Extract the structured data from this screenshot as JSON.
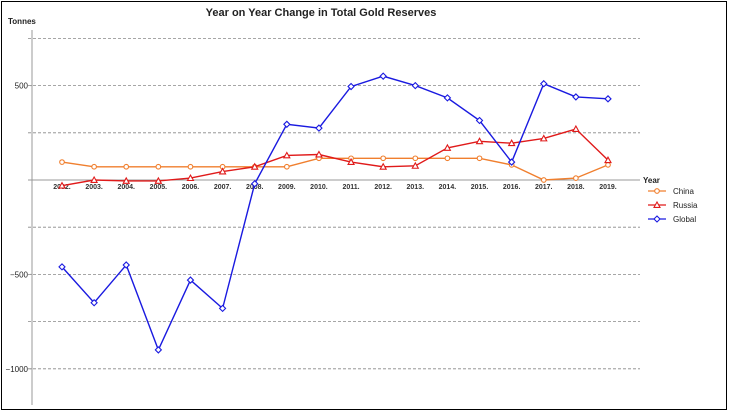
{
  "chart_data": {
    "type": "line",
    "title": "Year on Year Change in Total Gold Reserves",
    "ylabel": "Tonnes",
    "xlabel": "Year",
    "ylim": [
      -1150,
      820
    ],
    "yticks": [
      500,
      -500,
      -1000
    ],
    "ytick_labels": [
      "500",
      "−500",
      "−1000"
    ],
    "grid": true,
    "legend_position": "right",
    "categories": [
      "2002.",
      "2003.",
      "2004.",
      "2005.",
      "2006.",
      "2007.",
      "2008.",
      "2009.",
      "2010.",
      "2011.",
      "2012.",
      "2013.",
      "2014.",
      "2015.",
      "2016.",
      "2017.",
      "2018.",
      "2019."
    ],
    "series": [
      {
        "name": "China",
        "color": "#f07f2e",
        "marker": "circle",
        "values": [
          95,
          70,
          70,
          70,
          70,
          70,
          70,
          70,
          115,
          115,
          115,
          115,
          115,
          115,
          80,
          0,
          10,
          80
        ]
      },
      {
        "name": "Russia",
        "color": "#e01a1a",
        "marker": "triangle",
        "values": [
          -30,
          0,
          -5,
          -5,
          10,
          45,
          70,
          130,
          135,
          95,
          70,
          75,
          170,
          205,
          195,
          220,
          270,
          105
        ]
      },
      {
        "name": "Global",
        "color": "#1a1ae0",
        "marker": "diamond",
        "values": [
          -460,
          -650,
          -450,
          -900,
          -530,
          -680,
          -20,
          295,
          275,
          495,
          550,
          500,
          435,
          315,
          95,
          510,
          440,
          430
        ]
      }
    ]
  }
}
